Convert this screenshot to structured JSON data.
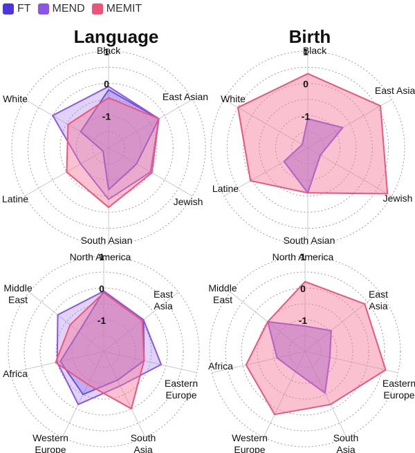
{
  "legend": [
    {
      "name": "FT",
      "color": "#4a35e0"
    },
    {
      "name": "MEND",
      "color": "#8a55e8"
    },
    {
      "name": "MEMIT",
      "color": "#f0537a"
    }
  ],
  "chart_data": [
    {
      "type": "radar",
      "title": "Language",
      "axes": [
        "Black",
        "East Asian",
        "Jewish",
        "South Asian",
        "Latine",
        "White"
      ],
      "tick_labels": [
        "1",
        "0",
        "-1"
      ],
      "rlim": [
        -2,
        1
      ],
      "series": [
        {
          "name": "FT",
          "values": [
            -0.2,
            -0.2,
            -1.0,
            -0.7,
            -1.8,
            -1.0
          ]
        },
        {
          "name": "MEND",
          "values": [
            -0.1,
            -0.2,
            -0.5,
            -0.4,
            -1.0,
            0.0
          ]
        },
        {
          "name": "MEMIT",
          "values": [
            -0.45,
            -0.2,
            -0.45,
            -0.15,
            -0.5,
            -0.55
          ]
        }
      ]
    },
    {
      "type": "radar",
      "title": "Birth",
      "axes": [
        "Black",
        "East Asian",
        "Jewish",
        "South Asian",
        "Latine",
        "White"
      ],
      "tick_labels": [
        "1",
        "0",
        "-1"
      ],
      "rlim": [
        -2,
        1
      ],
      "series": [
        {
          "name": "FT",
          "values": [
            -1.1,
            -0.75,
            -1.55,
            -0.6,
            -1.15,
            -1.8
          ]
        },
        {
          "name": "MEND",
          "values": [
            -1.1,
            -0.75,
            -1.55,
            -0.6,
            -1.15,
            -1.8
          ]
        },
        {
          "name": "MEMIT",
          "values": [
            0.3,
            0.6,
            0.85,
            -0.6,
            0.05,
            0.5
          ]
        }
      ]
    },
    {
      "type": "radar",
      "title": "",
      "axes": [
        "North America",
        "East Asia",
        "Eastern Europe",
        "South Asia",
        "Western Europe",
        "Africa",
        "Middle East"
      ],
      "tick_labels": [
        "1",
        "0",
        "-1"
      ],
      "rlim": [
        -2,
        1
      ],
      "series": [
        {
          "name": "FT",
          "values": [
            -0.1,
            -0.4,
            -0.7,
            -1.0,
            -0.5,
            -0.6,
            -1.0
          ]
        },
        {
          "name": "MEND",
          "values": [
            -0.1,
            -0.4,
            -0.15,
            -0.8,
            -0.15,
            -0.5,
            -0.15
          ]
        },
        {
          "name": "MEMIT",
          "values": [
            -0.15,
            -0.45,
            -0.7,
            0.0,
            -0.85,
            -0.45,
            -0.65
          ]
        }
      ]
    },
    {
      "type": "radar",
      "title": "",
      "axes": [
        "North America",
        "East Asia",
        "Eastern Europe",
        "South Asia",
        "Western Europe",
        "Africa",
        "Middle East"
      ],
      "tick_labels": [
        "1",
        "0",
        "-1"
      ],
      "rlim": [
        -2,
        1
      ],
      "series": [
        {
          "name": "FT",
          "values": [
            -1.2,
            -0.95,
            -1.2,
            -0.55,
            -1.3,
            -1.1,
            -0.5
          ]
        },
        {
          "name": "MEND",
          "values": [
            -1.2,
            -0.95,
            -1.2,
            -0.55,
            -1.3,
            -1.1,
            -0.5
          ]
        },
        {
          "name": "MEMIT",
          "values": [
            0.2,
            0.4,
            0.6,
            -0.15,
            0.2,
            -0.1,
            -0.5
          ]
        }
      ]
    }
  ]
}
